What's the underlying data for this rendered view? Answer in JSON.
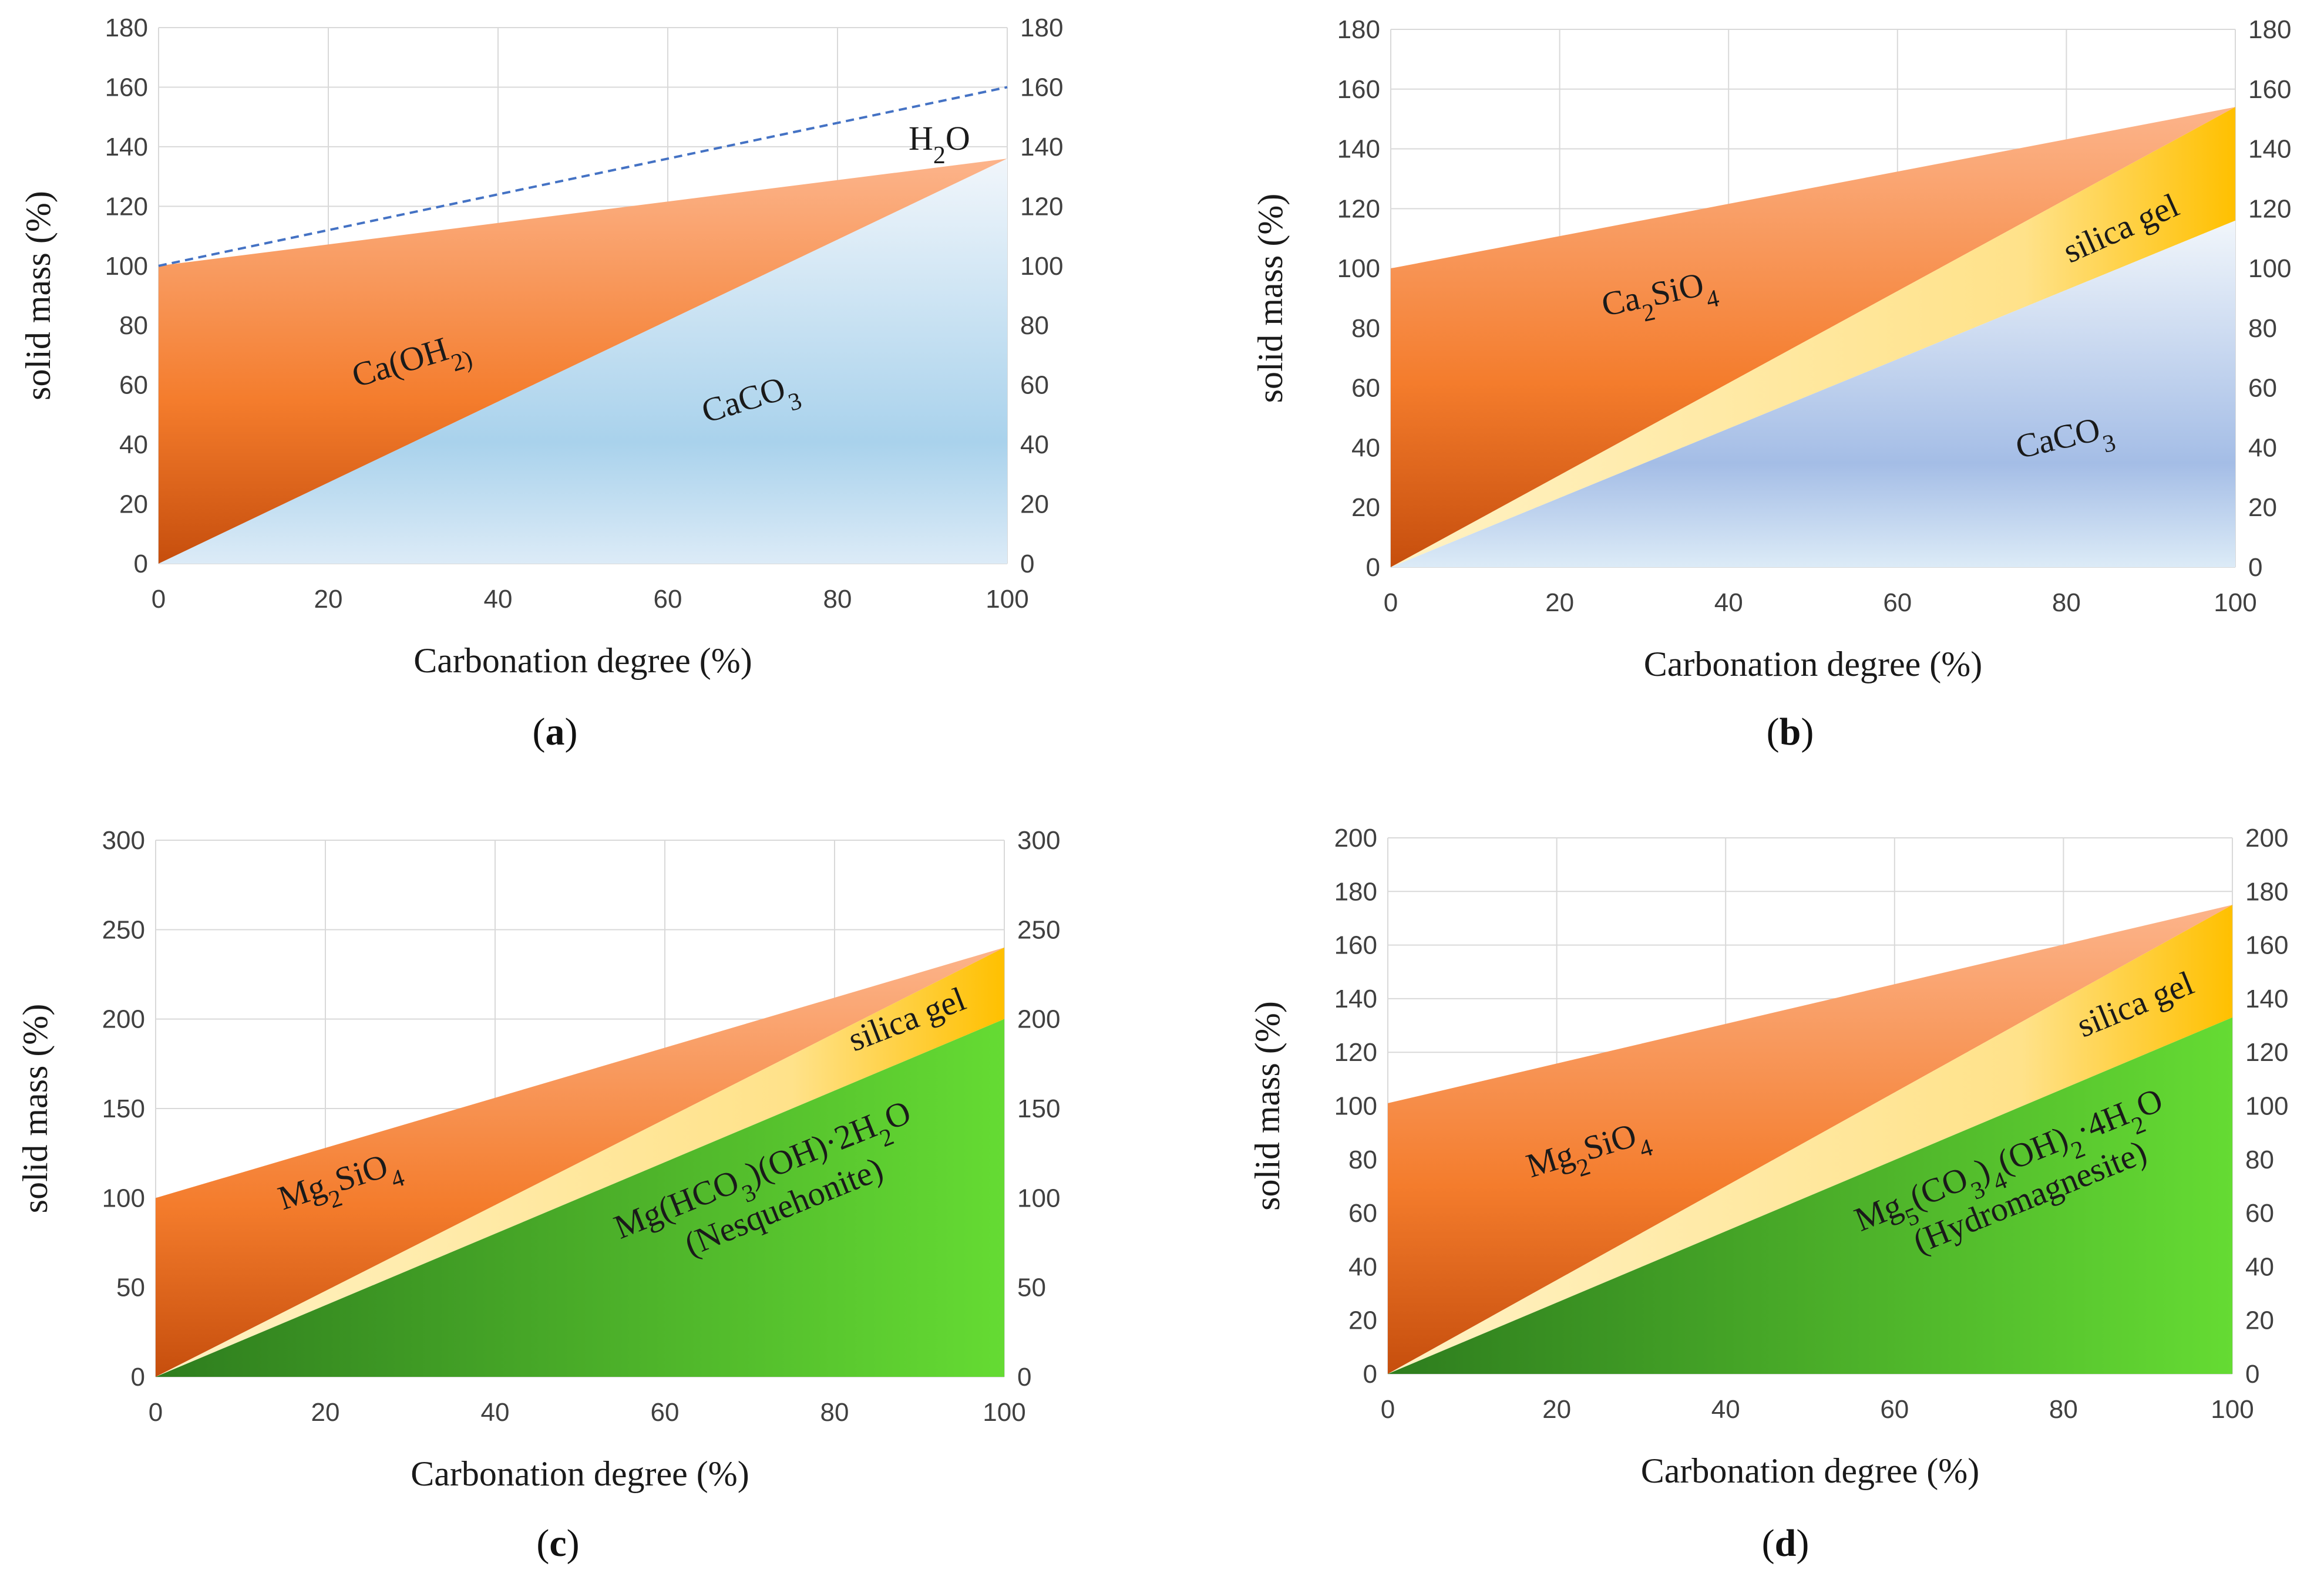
{
  "chart_data": [
    {
      "id": "a",
      "type": "area",
      "caption_letter": "a",
      "xlabel": "Carbonation degree (%)",
      "ylabel": "solid mass  (%)",
      "xlim": [
        0,
        100
      ],
      "ylim": [
        0,
        180
      ],
      "xticks": [
        0,
        20,
        40,
        60,
        80,
        100
      ],
      "yticks": [
        0,
        20,
        40,
        60,
        80,
        100,
        120,
        140,
        160,
        180
      ],
      "secondary_y": true,
      "grid": true,
      "regions": [
        {
          "name": "Ca(OH2)",
          "label": "Ca(OH",
          "sub": "2)",
          "polygon": [
            [
              0,
              0
            ],
            [
              0,
              100
            ],
            [
              100,
              136
            ]
          ],
          "fill": "orange"
        },
        {
          "name": "CaCO3",
          "label": "CaCO",
          "sub": "3",
          "polygon": [
            [
              0,
              0
            ],
            [
              100,
              136
            ],
            [
              100,
              0
            ]
          ],
          "fill": "blue"
        }
      ],
      "lines": [
        {
          "name": "H2O",
          "label": "H",
          "sub": "2",
          "tail": "O",
          "points": [
            [
              0,
              100
            ],
            [
              100,
              160
            ]
          ],
          "style": "dashed",
          "color": "#4472c4"
        }
      ],
      "labels": [
        {
          "ref": "Ca(OH2)",
          "at": [
            30,
            65
          ],
          "rotate": -17
        },
        {
          "ref": "CaCO3",
          "at": [
            70,
            52
          ],
          "rotate": -17
        },
        {
          "ref": "H2O",
          "at": [
            92,
            139
          ],
          "rotate": 0
        }
      ]
    },
    {
      "id": "b",
      "type": "area",
      "caption_letter": "b",
      "xlabel": "Carbonation degree (%)",
      "ylabel": "solid mass  (%)",
      "xlim": [
        0,
        100
      ],
      "ylim": [
        0,
        180
      ],
      "xticks": [
        0,
        20,
        40,
        60,
        80,
        100
      ],
      "yticks": [
        0,
        20,
        40,
        60,
        80,
        100,
        120,
        140,
        160,
        180
      ],
      "secondary_y": true,
      "grid": true,
      "regions": [
        {
          "name": "Ca2SiO4",
          "label": "Ca",
          "sub": "2",
          "tail": "SiO",
          "sub2": "4",
          "polygon": [
            [
              0,
              0
            ],
            [
              0,
              100
            ],
            [
              100,
              154
            ]
          ],
          "fill": "orange"
        },
        {
          "name": "silica gel",
          "label": "silica gel",
          "polygon": [
            [
              0,
              0
            ],
            [
              100,
              154
            ],
            [
              100,
              116
            ]
          ],
          "fill": "yellow"
        },
        {
          "name": "CaCO3",
          "label": "CaCO",
          "sub": "3",
          "polygon": [
            [
              0,
              0
            ],
            [
              100,
              116
            ],
            [
              100,
              0
            ]
          ],
          "fill": "blue"
        }
      ],
      "labels": [
        {
          "ref": "Ca2SiO4",
          "at": [
            32,
            88
          ],
          "rotate": -12
        },
        {
          "ref": "silica gel",
          "at": [
            87,
            110
          ],
          "rotate": -24
        },
        {
          "ref": "CaCO3",
          "at": [
            80,
            40
          ],
          "rotate": -13
        }
      ]
    },
    {
      "id": "c",
      "type": "area",
      "caption_letter": "c",
      "xlabel": "Carbonation degree (%)",
      "ylabel": "solid mass  (%)",
      "xlim": [
        0,
        100
      ],
      "ylim": [
        0,
        300
      ],
      "xticks": [
        0,
        20,
        40,
        60,
        80,
        100
      ],
      "yticks": [
        0,
        50,
        100,
        150,
        200,
        250,
        300
      ],
      "secondary_y": true,
      "grid": true,
      "regions": [
        {
          "name": "Mg2SiO4",
          "label": "Mg",
          "sub": "2",
          "tail": "SiO",
          "sub2": "4",
          "polygon": [
            [
              0,
              0
            ],
            [
              0,
              100
            ],
            [
              100,
              240
            ]
          ],
          "fill": "orange"
        },
        {
          "name": "silica gel",
          "label": "silica gel",
          "polygon": [
            [
              0,
              0
            ],
            [
              100,
              240
            ],
            [
              100,
              200
            ]
          ],
          "fill": "yellow"
        },
        {
          "name": "Mg(HCO3)(OH)·2H2O",
          "label": "Mg(HCO",
          "sub": "3",
          "tail": ")(OH)·2H",
          "sub2": "2",
          "tail2": "O",
          "line2": "(Nesquehonite)",
          "polygon": [
            [
              0,
              0
            ],
            [
              100,
              200
            ],
            [
              100,
              0
            ]
          ],
          "fill": "green"
        }
      ],
      "labels": [
        {
          "ref": "Mg2SiO4",
          "at": [
            22,
            104
          ],
          "rotate": -18
        },
        {
          "ref": "silica gel",
          "at": [
            89,
            194
          ],
          "rotate": -21
        },
        {
          "ref": "Mg(HCO3)(OH)·2H2O",
          "at": [
            72,
            110
          ],
          "rotate": -22
        }
      ]
    },
    {
      "id": "d",
      "type": "area",
      "caption_letter": "d",
      "xlabel": "Carbonation degree (%)",
      "ylabel": "solid mass  (%)",
      "xlim": [
        0,
        100
      ],
      "ylim": [
        0,
        200
      ],
      "xticks": [
        0,
        20,
        40,
        60,
        80,
        100
      ],
      "yticks": [
        0,
        20,
        40,
        60,
        80,
        100,
        120,
        140,
        160,
        180,
        200
      ],
      "secondary_y": true,
      "grid": true,
      "regions": [
        {
          "name": "Mg2SiO4",
          "label": "Mg",
          "sub": "2",
          "tail": "SiO",
          "sub2": "4",
          "polygon": [
            [
              0,
              0
            ],
            [
              0,
              101
            ],
            [
              100,
              175
            ]
          ],
          "fill": "orange"
        },
        {
          "name": "silica gel",
          "label": "silica gel",
          "polygon": [
            [
              0,
              0
            ],
            [
              100,
              175
            ],
            [
              100,
              133
            ]
          ],
          "fill": "yellow"
        },
        {
          "name": "Mg5(CO3)4(OH)2·4H2O",
          "label": "Mg",
          "sub": "5",
          "tail": "(CO",
          "sub2": "3",
          "tail2": ")",
          "sub3": "4",
          "tail3": "(OH)",
          "sub4": "2",
          "tail4": "·4H",
          "sub5": "2",
          "tail5": "O",
          "line2": "(Hydromagnesite)",
          "polygon": [
            [
              0,
              0
            ],
            [
              100,
              133
            ],
            [
              100,
              0
            ]
          ],
          "fill": "green"
        }
      ],
      "labels": [
        {
          "ref": "Mg2SiO4",
          "at": [
            24,
            80
          ],
          "rotate": -17
        },
        {
          "ref": "silica gel",
          "at": [
            89,
            134
          ],
          "rotate": -22
        },
        {
          "ref": "Mg5(CO3)4(OH)2·4H2O",
          "at": [
            74,
            76
          ],
          "rotate": -22
        }
      ]
    }
  ],
  "colors": {
    "orange_top": "#fcb48b",
    "orange_mid": "#f47c2c",
    "orange_bottom": "#c64e0d",
    "yellow_light": "#fff2c4",
    "yellow_dark": "#ffc000",
    "blue_top": "#f1f6fb",
    "blue_mid": "#a9d2ec",
    "blue_b_mid": "#a4bde6",
    "green_dark": "#2e7d1e",
    "green_light": "#65db33",
    "dashed_line": "#4472c4"
  }
}
